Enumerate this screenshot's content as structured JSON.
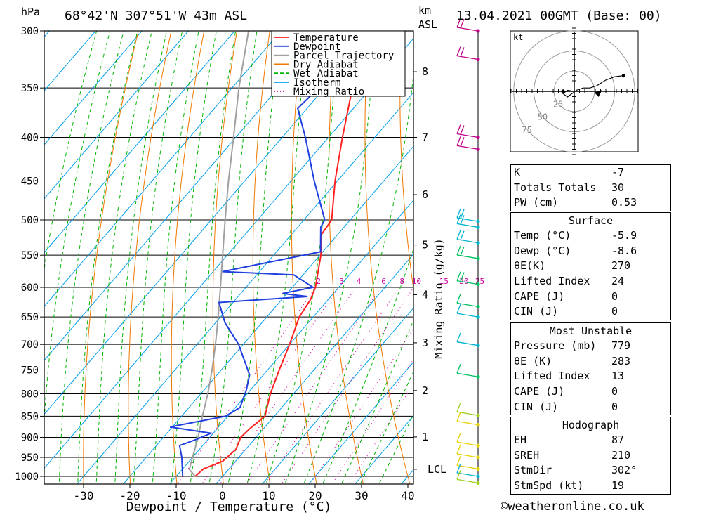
{
  "header": {
    "pressure_unit": "hPa",
    "location": "68°42'N  307°51'W  43m  ASL",
    "km_unit": "km",
    "asl": "ASL",
    "datetime": "13.04.2021  00GMT  (Base: 00)"
  },
  "chart_data": {
    "type": "skew-t",
    "xlabel": "Dewpoint / Temperature (°C)",
    "ylabel": "hPa",
    "mixing_ratio_label": "Mixing Ratio (g/kg)",
    "x_ticks": [
      -30,
      -20,
      -10,
      0,
      10,
      20,
      30,
      40
    ],
    "pressure_levels": [
      300,
      350,
      400,
      450,
      500,
      550,
      600,
      650,
      700,
      750,
      800,
      850,
      900,
      950,
      1000
    ],
    "km_ticks": [
      {
        "label": "8",
        "p": 335
      },
      {
        "label": "7",
        "p": 400
      },
      {
        "label": "6",
        "p": 467
      },
      {
        "label": "5",
        "p": 535
      },
      {
        "label": "4",
        "p": 612
      },
      {
        "label": "3",
        "p": 697
      },
      {
        "label": "2",
        "p": 793
      },
      {
        "label": "1",
        "p": 899
      },
      {
        "label": "LCL",
        "p": 981
      }
    ],
    "mixing_ratio_values": [
      "2",
      "3",
      "4",
      "6",
      "8",
      "10",
      "15",
      "20",
      "25"
    ],
    "legend": [
      "Temperature",
      "Dewpoint",
      "Parcel Trajectory",
      "Dry Adiabat",
      "Wet Adiabat",
      "Isotherm",
      "Mixing Ratio"
    ],
    "colors": {
      "temperature": "#ff2020",
      "dewpoint": "#1f3fe0",
      "parcel": "#a0a0a0",
      "dry_adiabat": "#f07800",
      "wet_adiabat": "#00b400",
      "isotherm": "#00a0f0",
      "mixing_ratio": "#d000a0"
    },
    "temperature": [
      {
        "p": 1000,
        "t": -5.9
      },
      {
        "p": 980,
        "t": -5.5
      },
      {
        "p": 960,
        "t": -2.8
      },
      {
        "p": 930,
        "t": -2.1
      },
      {
        "p": 900,
        "t": -3.3
      },
      {
        "p": 880,
        "t": -3.0
      },
      {
        "p": 850,
        "t": -2.0
      },
      {
        "p": 800,
        "t": -5.0
      },
      {
        "p": 750,
        "t": -7.5
      },
      {
        "p": 700,
        "t": -10.0
      },
      {
        "p": 650,
        "t": -13.0
      },
      {
        "p": 620,
        "t": -13.8
      },
      {
        "p": 600,
        "t": -15.0
      },
      {
        "p": 550,
        "t": -19.8
      },
      {
        "p": 520,
        "t": -23.5
      },
      {
        "p": 500,
        "t": -24.0
      },
      {
        "p": 450,
        "t": -30.5
      },
      {
        "p": 400,
        "t": -37.0
      },
      {
        "p": 350,
        "t": -44.0
      },
      {
        "p": 320,
        "t": -47.0
      },
      {
        "p": 300,
        "t": -50.0
      }
    ],
    "dewpoint": [
      {
        "p": 1000,
        "t": -8.6
      },
      {
        "p": 950,
        "t": -12.3
      },
      {
        "p": 920,
        "t": -15.0
      },
      {
        "p": 905,
        "t": -12.5
      },
      {
        "p": 890,
        "t": -10.5
      },
      {
        "p": 875,
        "t": -20.5
      },
      {
        "p": 850,
        "t": -10.5
      },
      {
        "p": 830,
        "t": -9.0
      },
      {
        "p": 790,
        "t": -11.0
      },
      {
        "p": 760,
        "t": -13.0
      },
      {
        "p": 700,
        "t": -21.0
      },
      {
        "p": 660,
        "t": -28.0
      },
      {
        "p": 625,
        "t": -33.0
      },
      {
        "p": 615,
        "t": -15.0
      },
      {
        "p": 610,
        "t": -21.0
      },
      {
        "p": 600,
        "t": -15.5
      },
      {
        "p": 580,
        "t": -22.0
      },
      {
        "p": 575,
        "t": -38.0
      },
      {
        "p": 545,
        "t": -20.5
      },
      {
        "p": 510,
        "t": -25.0
      },
      {
        "p": 500,
        "t": -25.5
      },
      {
        "p": 450,
        "t": -35.0
      },
      {
        "p": 400,
        "t": -45.0
      },
      {
        "p": 370,
        "t": -52.0
      },
      {
        "p": 355,
        "t": -51.5
      },
      {
        "p": 330,
        "t": -60.0
      },
      {
        "p": 318,
        "t": -57.0
      },
      {
        "p": 300,
        "t": -62.0
      }
    ],
    "parcel": [
      {
        "p": 1000,
        "t": -5.9
      },
      {
        "p": 981,
        "t": -8.5
      },
      {
        "p": 900,
        "t": -12.5
      },
      {
        "p": 850,
        "t": -15.5
      },
      {
        "p": 800,
        "t": -18.5
      },
      {
        "p": 750,
        "t": -22.0
      },
      {
        "p": 700,
        "t": -26.0
      },
      {
        "p": 650,
        "t": -30.5
      },
      {
        "p": 600,
        "t": -35.5
      },
      {
        "p": 550,
        "t": -41.0
      },
      {
        "p": 500,
        "t": -47.0
      },
      {
        "p": 450,
        "t": -53.5
      },
      {
        "p": 400,
        "t": -60.5
      },
      {
        "p": 350,
        "t": -68.5
      },
      {
        "p": 300,
        "t": -77.0
      }
    ],
    "wind_markers": [
      {
        "p": 300,
        "color": "#c0008a"
      },
      {
        "p": 324,
        "color": "#c0008a"
      },
      {
        "p": 400,
        "color": "#c0008a"
      },
      {
        "p": 413,
        "color": "#c0008a"
      },
      {
        "p": 502,
        "color": "#00b4d0"
      },
      {
        "p": 510,
        "color": "#00b4d0"
      },
      {
        "p": 532,
        "color": "#00b4d0"
      },
      {
        "p": 555,
        "color": "#00c060"
      },
      {
        "p": 595,
        "color": "#00c060"
      },
      {
        "p": 632,
        "color": "#00c060"
      },
      {
        "p": 650,
        "color": "#00b4d0"
      },
      {
        "p": 702,
        "color": "#00b4d0"
      },
      {
        "p": 764,
        "color": "#00c060"
      },
      {
        "p": 848,
        "color": "#a0d020"
      },
      {
        "p": 870,
        "color": "#e8d000"
      },
      {
        "p": 920,
        "color": "#e8d000"
      },
      {
        "p": 950,
        "color": "#e8d000"
      },
      {
        "p": 980,
        "color": "#e8d000"
      },
      {
        "p": 1000,
        "color": "#00b4d0"
      },
      {
        "p": 1018,
        "color": "#a0d020"
      }
    ],
    "hodograph": {
      "unit": "kt",
      "rings": [
        "25",
        "50",
        "75"
      ],
      "trace": [
        [
          0,
          0
        ],
        [
          -6,
          1
        ],
        [
          -10,
          -2
        ],
        [
          -6,
          -5
        ],
        [
          2,
          1
        ],
        [
          8,
          3
        ],
        [
          14,
          3
        ],
        [
          20,
          5
        ],
        [
          28,
          10
        ],
        [
          36,
          13
        ],
        [
          44,
          14
        ]
      ],
      "storm_motion": [
        32,
        2
      ]
    }
  },
  "indices": [
    {
      "label": "K",
      "value": "-7"
    },
    {
      "label": "Totals Totals",
      "value": "30"
    },
    {
      "label": "PW (cm)",
      "value": "0.53"
    }
  ],
  "surface": {
    "title": "Surface",
    "rows": [
      {
        "label": "Temp (°C)",
        "value": "-5.9"
      },
      {
        "label": "Dewp (°C)",
        "value": "-8.6"
      },
      {
        "label": "θE(K)",
        "value": "270"
      },
      {
        "label": "Lifted Index",
        "value": "24"
      },
      {
        "label": "CAPE (J)",
        "value": "0"
      },
      {
        "label": "CIN (J)",
        "value": "0"
      }
    ]
  },
  "most_unstable": {
    "title": "Most Unstable",
    "rows": [
      {
        "label": "Pressure (mb)",
        "value": "779"
      },
      {
        "label": "θE (K)",
        "value": "283"
      },
      {
        "label": "Lifted Index",
        "value": "13"
      },
      {
        "label": "CAPE (J)",
        "value": "0"
      },
      {
        "label": "CIN (J)",
        "value": "0"
      }
    ]
  },
  "hodograph_table": {
    "title": "Hodograph",
    "rows": [
      {
        "label": "EH",
        "value": "87"
      },
      {
        "label": "SREH",
        "value": "210"
      },
      {
        "label": "StmDir",
        "value": "302°"
      },
      {
        "label": "StmSpd (kt)",
        "value": "19"
      }
    ]
  },
  "footer": "©weatheronline.co.uk"
}
